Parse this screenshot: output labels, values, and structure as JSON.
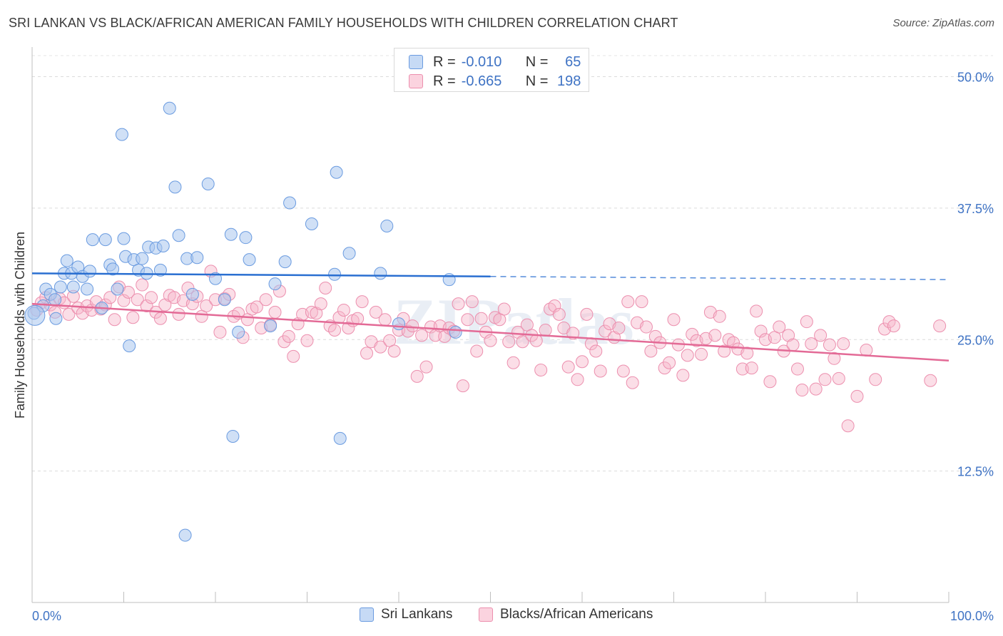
{
  "header": {
    "title": "SRI LANKAN VS BLACK/AFRICAN AMERICAN FAMILY HOUSEHOLDS WITH CHILDREN CORRELATION CHART",
    "source": "Source: ZipAtlas.com"
  },
  "stats": {
    "rows": [
      {
        "r_label": "R =",
        "r_value": "-0.010",
        "n_label": "N =",
        "n_value": "65",
        "color": "#a9c6ef"
      },
      {
        "r_label": "R =",
        "r_value": "-0.665",
        "n_label": "N =",
        "n_value": "198",
        "color": "#f6b6ca"
      }
    ]
  },
  "legend": [
    {
      "label": "Sri Lankans",
      "color": "#a9c6ef",
      "stroke": "#6a9be0"
    },
    {
      "label": "Blacks/African Americans",
      "color": "#f6b6ca",
      "stroke": "#ec8fae"
    }
  ],
  "watermark": "ZIPatlas",
  "chart_data": {
    "type": "scatter",
    "title": "SRI LANKAN VS BLACK/AFRICAN AMERICAN FAMILY HOUSEHOLDS WITH CHILDREN CORRELATION CHART",
    "xlabel": "",
    "ylabel": "Family Households with Children",
    "xlim": [
      0,
      100
    ],
    "ylim": [
      0,
      52
    ],
    "x_tick_labels": [
      "0.0%",
      "100.0%"
    ],
    "y_ticks": [
      12.5,
      25.0,
      37.5,
      50.0
    ],
    "y_tick_labels": [
      "12.5%",
      "25.0%",
      "37.5%",
      "50.0%"
    ],
    "grid": true,
    "series": [
      {
        "name": "Sri Lankans",
        "color": "#a9c6ef",
        "stroke": "#6a9be0",
        "trend": {
          "x0": 0,
          "y0": 31.3,
          "x1": 50,
          "y1": 31.0,
          "dash_to": 100,
          "dash_y": 30.7,
          "color": "#2a6fd1"
        },
        "points": [
          [
            0.2,
            27.5
          ],
          [
            1.2,
            28.2
          ],
          [
            1.5,
            29.8
          ],
          [
            2.0,
            29.3
          ],
          [
            2.5,
            28.8
          ],
          [
            2.6,
            27.0
          ],
          [
            3.1,
            30.0
          ],
          [
            3.5,
            31.3
          ],
          [
            3.8,
            32.5
          ],
          [
            4.3,
            31.3
          ],
          [
            4.5,
            30.0
          ],
          [
            5.0,
            31.9
          ],
          [
            5.5,
            31.0
          ],
          [
            6.0,
            29.8
          ],
          [
            6.3,
            31.5
          ],
          [
            6.6,
            34.5
          ],
          [
            7.6,
            28.0
          ],
          [
            8.0,
            34.5
          ],
          [
            8.5,
            32.1
          ],
          [
            8.8,
            31.7
          ],
          [
            9.3,
            29.8
          ],
          [
            9.8,
            44.5
          ],
          [
            10.0,
            34.6
          ],
          [
            10.2,
            32.9
          ],
          [
            10.6,
            24.4
          ],
          [
            11.1,
            32.6
          ],
          [
            11.6,
            31.6
          ],
          [
            12.0,
            32.7
          ],
          [
            12.5,
            31.3
          ],
          [
            12.7,
            33.8
          ],
          [
            13.5,
            33.7
          ],
          [
            14.0,
            31.6
          ],
          [
            14.3,
            33.9
          ],
          [
            15.0,
            47.0
          ],
          [
            15.6,
            39.5
          ],
          [
            16.0,
            34.9
          ],
          [
            16.7,
            6.4
          ],
          [
            16.9,
            32.7
          ],
          [
            17.5,
            29.3
          ],
          [
            18.0,
            32.8
          ],
          [
            19.2,
            39.8
          ],
          [
            20.0,
            30.8
          ],
          [
            21.0,
            28.8
          ],
          [
            21.7,
            35.0
          ],
          [
            21.9,
            15.8
          ],
          [
            22.5,
            25.7
          ],
          [
            23.3,
            34.7
          ],
          [
            23.7,
            32.6
          ],
          [
            26.0,
            26.3
          ],
          [
            26.5,
            30.3
          ],
          [
            27.6,
            32.4
          ],
          [
            28.1,
            38.0
          ],
          [
            30.5,
            36.0
          ],
          [
            33.0,
            31.2
          ],
          [
            33.2,
            40.9
          ],
          [
            33.6,
            15.6
          ],
          [
            34.6,
            33.2
          ],
          [
            38.0,
            31.3
          ],
          [
            38.7,
            35.8
          ],
          [
            40.0,
            26.5
          ],
          [
            45.5,
            30.7
          ],
          [
            46.2,
            25.7
          ]
        ]
      },
      {
        "name": "Blacks/African Americans",
        "color": "#f6b6ca",
        "stroke": "#ec8fae",
        "trend": {
          "x0": 0,
          "y0": 28.4,
          "x1": 100,
          "y1": 23.0,
          "color": "#e36a96"
        },
        "points": [
          [
            0.5,
            27.8
          ],
          [
            1.0,
            28.5
          ],
          [
            1.5,
            29.0
          ],
          [
            2.0,
            28.3
          ],
          [
            2.5,
            27.6
          ],
          [
            3.0,
            28.9
          ],
          [
            3.5,
            28.5
          ],
          [
            4.0,
            27.4
          ],
          [
            4.5,
            29.1
          ],
          [
            5.0,
            28.0
          ],
          [
            5.5,
            27.5
          ],
          [
            6.0,
            28.2
          ],
          [
            6.5,
            27.8
          ],
          [
            7.0,
            28.6
          ],
          [
            7.5,
            27.9
          ],
          [
            8.0,
            28.3
          ],
          [
            8.5,
            29.0
          ],
          [
            9.0,
            26.9
          ],
          [
            9.5,
            30.0
          ],
          [
            10.0,
            28.7
          ],
          [
            10.5,
            29.5
          ],
          [
            11.0,
            27.1
          ],
          [
            11.5,
            28.8
          ],
          [
            12.0,
            30.2
          ],
          [
            12.5,
            28.2
          ],
          [
            13.0,
            29.0
          ],
          [
            13.5,
            27.6
          ],
          [
            14.0,
            27.0
          ],
          [
            14.5,
            28.3
          ],
          [
            15.0,
            29.2
          ],
          [
            15.5,
            29.0
          ],
          [
            16.0,
            27.4
          ],
          [
            16.5,
            28.7
          ],
          [
            17.0,
            29.9
          ],
          [
            17.5,
            28.4
          ],
          [
            18.0,
            29.1
          ],
          [
            18.5,
            27.2
          ],
          [
            19.0,
            28.2
          ],
          [
            19.5,
            31.5
          ],
          [
            20.0,
            28.8
          ],
          [
            20.5,
            25.7
          ],
          [
            21.0,
            28.9
          ],
          [
            21.5,
            29.3
          ],
          [
            22.0,
            27.2
          ],
          [
            22.5,
            27.5
          ],
          [
            23.0,
            25.2
          ],
          [
            23.5,
            26.9
          ],
          [
            24.0,
            27.9
          ],
          [
            24.5,
            28.1
          ],
          [
            25.0,
            26.1
          ],
          [
            25.5,
            28.8
          ],
          [
            26.0,
            26.4
          ],
          [
            26.5,
            27.6
          ],
          [
            27.0,
            29.6
          ],
          [
            27.5,
            24.8
          ],
          [
            28.0,
            25.3
          ],
          [
            28.5,
            23.4
          ],
          [
            29.0,
            26.5
          ],
          [
            29.5,
            27.4
          ],
          [
            30.0,
            24.9
          ],
          [
            30.5,
            27.6
          ],
          [
            31.0,
            27.5
          ],
          [
            31.5,
            28.4
          ],
          [
            32.0,
            29.9
          ],
          [
            32.5,
            26.3
          ],
          [
            33.0,
            25.9
          ],
          [
            33.5,
            27.1
          ],
          [
            34.0,
            27.8
          ],
          [
            34.5,
            26.1
          ],
          [
            35.0,
            26.8
          ],
          [
            35.5,
            27.0
          ],
          [
            36.0,
            28.6
          ],
          [
            36.5,
            23.7
          ],
          [
            37.0,
            24.8
          ],
          [
            37.5,
            27.6
          ],
          [
            38.0,
            24.3
          ],
          [
            38.5,
            26.9
          ],
          [
            39.0,
            24.9
          ],
          [
            39.5,
            23.9
          ],
          [
            40.0,
            25.9
          ],
          [
            40.5,
            27.0
          ],
          [
            41.0,
            25.8
          ],
          [
            41.5,
            26.3
          ],
          [
            42.0,
            21.5
          ],
          [
            42.5,
            25.4
          ],
          [
            43.0,
            22.4
          ],
          [
            43.5,
            26.2
          ],
          [
            44.0,
            25.4
          ],
          [
            44.5,
            26.3
          ],
          [
            45.0,
            25.3
          ],
          [
            45.5,
            26.1
          ],
          [
            46.0,
            25.8
          ],
          [
            46.5,
            28.4
          ],
          [
            47.0,
            20.6
          ],
          [
            47.5,
            26.9
          ],
          [
            48.0,
            28.6
          ],
          [
            48.5,
            23.9
          ],
          [
            49.0,
            27.0
          ],
          [
            49.5,
            25.7
          ],
          [
            50.0,
            24.9
          ],
          [
            50.5,
            27.1
          ],
          [
            51.0,
            26.9
          ],
          [
            51.5,
            27.9
          ],
          [
            52.0,
            24.8
          ],
          [
            52.5,
            22.8
          ],
          [
            53.0,
            25.7
          ],
          [
            53.5,
            24.8
          ],
          [
            54.0,
            26.4
          ],
          [
            54.5,
            25.4
          ],
          [
            55.0,
            24.9
          ],
          [
            55.5,
            22.1
          ],
          [
            56.0,
            25.9
          ],
          [
            56.5,
            27.9
          ],
          [
            57.0,
            28.2
          ],
          [
            57.5,
            27.4
          ],
          [
            58.0,
            26.1
          ],
          [
            58.5,
            22.4
          ],
          [
            59.0,
            25.6
          ],
          [
            59.5,
            21.2
          ],
          [
            60.0,
            22.9
          ],
          [
            60.5,
            27.4
          ],
          [
            61.0,
            24.6
          ],
          [
            61.5,
            23.9
          ],
          [
            62.0,
            22.0
          ],
          [
            62.5,
            25.8
          ],
          [
            63.0,
            26.5
          ],
          [
            63.5,
            25.2
          ],
          [
            64.0,
            26.1
          ],
          [
            64.5,
            22.0
          ],
          [
            65.0,
            28.6
          ],
          [
            65.5,
            20.9
          ],
          [
            66.0,
            26.6
          ],
          [
            66.5,
            28.6
          ],
          [
            67.0,
            26.2
          ],
          [
            67.5,
            23.9
          ],
          [
            68.0,
            25.3
          ],
          [
            68.5,
            24.7
          ],
          [
            69.0,
            22.3
          ],
          [
            69.5,
            22.8
          ],
          [
            70.0,
            26.9
          ],
          [
            70.5,
            24.5
          ],
          [
            71.0,
            21.6
          ],
          [
            71.5,
            23.5
          ],
          [
            72.0,
            25.5
          ],
          [
            72.5,
            24.9
          ],
          [
            73.0,
            23.6
          ],
          [
            73.5,
            25.1
          ],
          [
            74.0,
            27.6
          ],
          [
            74.5,
            25.4
          ],
          [
            75.0,
            27.2
          ],
          [
            75.5,
            23.9
          ],
          [
            76.0,
            25.0
          ],
          [
            76.5,
            24.7
          ],
          [
            77.0,
            24.1
          ],
          [
            77.5,
            22.2
          ],
          [
            78.0,
            23.7
          ],
          [
            78.5,
            22.3
          ],
          [
            79.0,
            27.7
          ],
          [
            79.5,
            25.8
          ],
          [
            80.0,
            25.0
          ],
          [
            80.5,
            21.0
          ],
          [
            81.0,
            25.2
          ],
          [
            81.5,
            26.2
          ],
          [
            82.0,
            23.9
          ],
          [
            82.5,
            25.4
          ],
          [
            83.0,
            24.5
          ],
          [
            83.5,
            22.2
          ],
          [
            84.0,
            20.2
          ],
          [
            84.5,
            26.7
          ],
          [
            85.0,
            24.6
          ],
          [
            85.5,
            20.3
          ],
          [
            86.0,
            25.4
          ],
          [
            86.5,
            21.2
          ],
          [
            87.0,
            24.5
          ],
          [
            87.5,
            23.2
          ],
          [
            88.0,
            21.3
          ],
          [
            88.5,
            24.6
          ],
          [
            89.0,
            16.8
          ],
          [
            90.0,
            19.6
          ],
          [
            91.0,
            24.0
          ],
          [
            92.0,
            21.2
          ],
          [
            93.0,
            26.0
          ],
          [
            93.5,
            26.7
          ],
          [
            94.0,
            26.3
          ],
          [
            98.0,
            21.1
          ],
          [
            99.0,
            26.3
          ]
        ]
      }
    ]
  }
}
